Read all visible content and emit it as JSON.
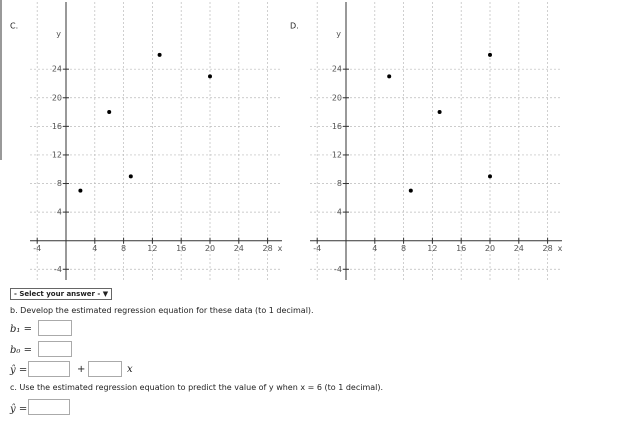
{
  "chart_data": [
    {
      "type": "scatter",
      "label": "C.",
      "x_label": "x",
      "y_label": "y",
      "x": [
        2,
        6,
        9,
        13,
        20
      ],
      "values": [
        7,
        18,
        9,
        26,
        23
      ],
      "color": "#000000",
      "xlim": [
        -5,
        30
      ],
      "ylim": [
        -5.5,
        33.4
      ],
      "xticks": [
        -4,
        4,
        8,
        12,
        16,
        20,
        24,
        28
      ],
      "yticks": [
        -4,
        4,
        8,
        12,
        16,
        20,
        24
      ],
      "grid": true
    },
    {
      "type": "scatter",
      "label": "D.",
      "x_label": "x",
      "y_label": "y",
      "x": [
        6,
        9,
        13,
        20,
        20
      ],
      "values": [
        23,
        7,
        18,
        26,
        9
      ],
      "color": "#000000",
      "xlim": [
        -5,
        30
      ],
      "ylim": [
        -5.5,
        33.4
      ],
      "xticks": [
        -4,
        4,
        8,
        12,
        16,
        20,
        24,
        28
      ],
      "yticks": [
        -4,
        4,
        8,
        12,
        16,
        20,
        24
      ],
      "grid": true
    }
  ],
  "form": {
    "dropdown": "- Select your answer -",
    "part_b": "b. Develop the estimated regression equation for these data (to 1 decimal).",
    "b1": "b₁ =",
    "b0": "b₀ =",
    "yhat": "ŷ =",
    "plus": "+",
    "x": "x",
    "part_c": "c. Use the estimated regression equation to predict the value of y when x = 6 (to 1 decimal).",
    "yhat_c": "ŷ ="
  }
}
